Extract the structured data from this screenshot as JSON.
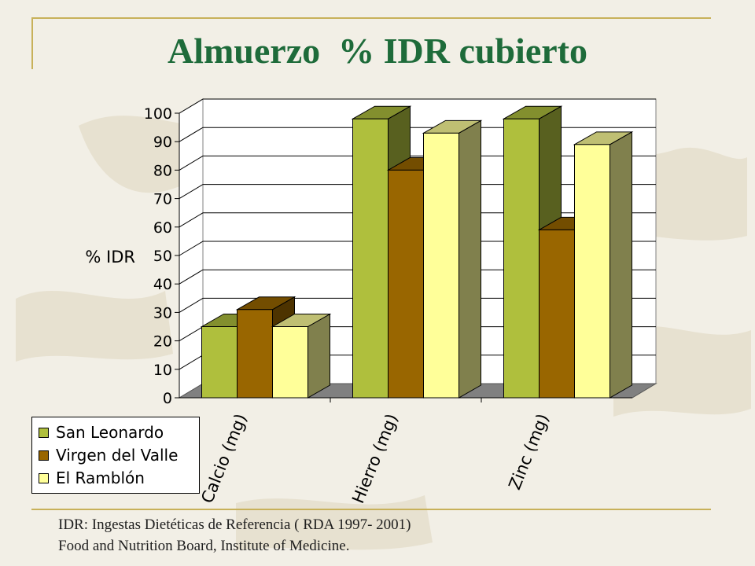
{
  "slide": {
    "title": "Almuerzo  % IDR cubierto",
    "footnote_line1": "IDR: Ingestas Dietéticas de Referencia ( RDA 1997- 2001)",
    "footnote_line2": "Food and Nutrition Board, Institute of  Medicine."
  },
  "colors": {
    "title": "#1e6b3a",
    "frame": "#c8b15a",
    "background": "#f2efe6"
  },
  "chart_data": {
    "type": "bar",
    "style": "3d-clustered",
    "title": "",
    "ylabel": "% IDR",
    "xlabel": "",
    "ylim": [
      0,
      100
    ],
    "yticks": [
      0,
      10,
      20,
      30,
      40,
      50,
      60,
      70,
      80,
      90,
      100
    ],
    "grid": true,
    "legend_position": "bottom-left",
    "categories": [
      "Calcio (mg)",
      "Hierro (mg)",
      "Zinc (mg)"
    ],
    "series": [
      {
        "name": "San Leonardo",
        "values": [
          25,
          98,
          98
        ],
        "color": "#afbf3d"
      },
      {
        "name": "Virgen del Valle",
        "values": [
          31,
          80,
          59
        ],
        "color": "#996600"
      },
      {
        "name": "El Ramblón",
        "values": [
          25,
          93,
          89
        ],
        "color": "#ffff99"
      }
    ]
  }
}
